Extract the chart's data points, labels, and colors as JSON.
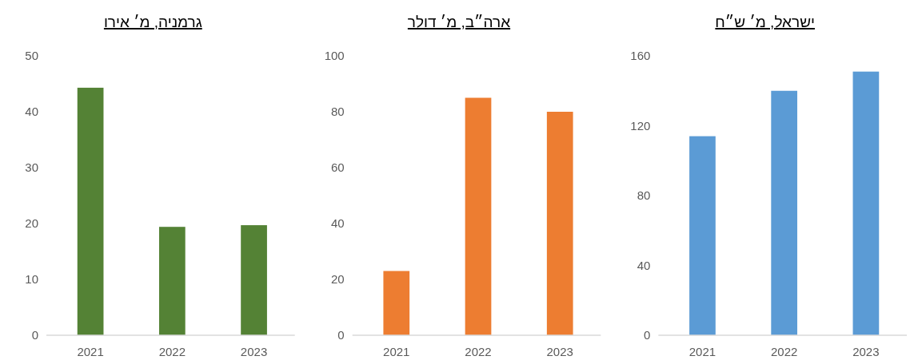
{
  "chart_data": [
    {
      "type": "bar",
      "title": "גרמניה, מ׳ אירו",
      "categories": [
        "2021",
        "2022",
        "2023"
      ],
      "values": [
        44.3,
        19.4,
        19.7
      ],
      "color": "#548235",
      "ylim": [
        0,
        50
      ],
      "yticks": [
        0,
        10,
        20,
        30,
        40,
        50
      ]
    },
    {
      "type": "bar",
      "title": "ארה״ב, מ׳ דולר",
      "categories": [
        "2021",
        "2022",
        "2023"
      ],
      "values": [
        23,
        85,
        80
      ],
      "color": "#ed7d31",
      "ylim": [
        0,
        100
      ],
      "yticks": [
        0,
        20,
        40,
        60,
        80,
        100
      ]
    },
    {
      "type": "bar",
      "title": "ישראל, מ׳ ש״ח",
      "categories": [
        "2021",
        "2022",
        "2023"
      ],
      "values": [
        114,
        140,
        151
      ],
      "color": "#5b9bd5",
      "ylim": [
        0,
        160
      ],
      "yticks": [
        0,
        40,
        80,
        120,
        160
      ]
    }
  ]
}
